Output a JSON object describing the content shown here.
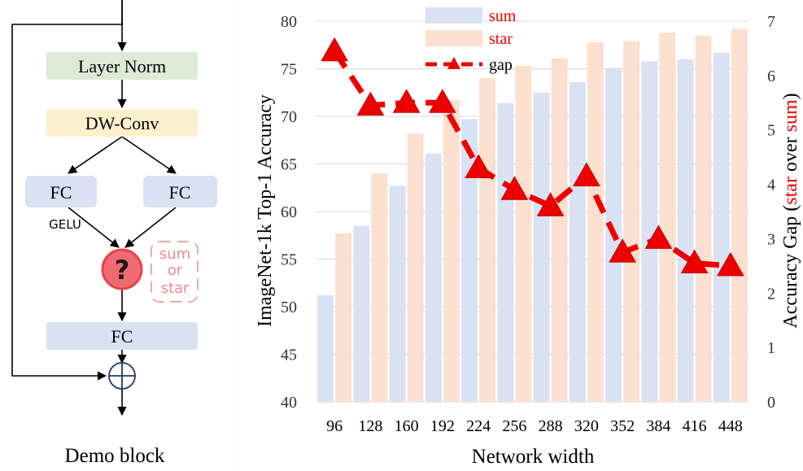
{
  "diagram": {
    "caption": "Demo block",
    "layer_norm": "Layer Norm",
    "dw_conv": "DW-Conv",
    "fc_left": "FC",
    "fc_right": "FC",
    "gelu": "GELU",
    "op_symbol": "?",
    "op_note_1": "sum",
    "op_note_2": "or",
    "op_note_3": "star",
    "fc_bottom": "FC",
    "colors": {
      "layer_norm": "#dcebd6",
      "dw_conv": "#fdf0cc",
      "fc": "#d9e2f3",
      "op_fill": "#f16a72",
      "op_stroke": "#e8434b",
      "note": "#f3a9ae"
    }
  },
  "chart_data": {
    "type": "bar",
    "categories": [
      "96",
      "128",
      "160",
      "192",
      "224",
      "256",
      "288",
      "320",
      "352",
      "384",
      "416",
      "448"
    ],
    "series": [
      {
        "name": "sum",
        "axis": "left",
        "color": "#d9e2f3",
        "values": [
          51.2,
          58.5,
          62.7,
          66.1,
          69.7,
          71.4,
          72.5,
          73.6,
          75.1,
          75.8,
          76.0,
          76.7
        ]
      },
      {
        "name": "star",
        "axis": "left",
        "color": "#fce0cf",
        "values": [
          57.7,
          64.0,
          68.2,
          71.7,
          74.0,
          75.3,
          76.1,
          77.8,
          77.9,
          78.8,
          78.5,
          79.2
        ]
      },
      {
        "name": "gap",
        "axis": "right",
        "type": "line",
        "color": "#ee0000",
        "values": [
          6.45,
          5.45,
          5.5,
          5.5,
          4.3,
          3.9,
          3.6,
          4.15,
          2.75,
          3.0,
          2.55,
          2.5
        ]
      }
    ],
    "xlabel": "Network width",
    "ylabel": "ImageNet-1k Top-1 Accuracy",
    "ylabel_right": {
      "prefix": "Accuracy Gap (",
      "star": "star",
      "middle": " over ",
      "sum": "sum",
      "suffix": ")"
    },
    "ylim": [
      40,
      80
    ],
    "yticks": [
      "40",
      "45",
      "50",
      "55",
      "60",
      "65",
      "70",
      "75",
      "80"
    ],
    "ylim_right": [
      0,
      7
    ],
    "yticks_right": [
      "0",
      "1",
      "2",
      "3",
      "4",
      "5",
      "6",
      "7"
    ],
    "grid": true,
    "legend": "top-center",
    "legend_label_color": "#ee0000"
  }
}
